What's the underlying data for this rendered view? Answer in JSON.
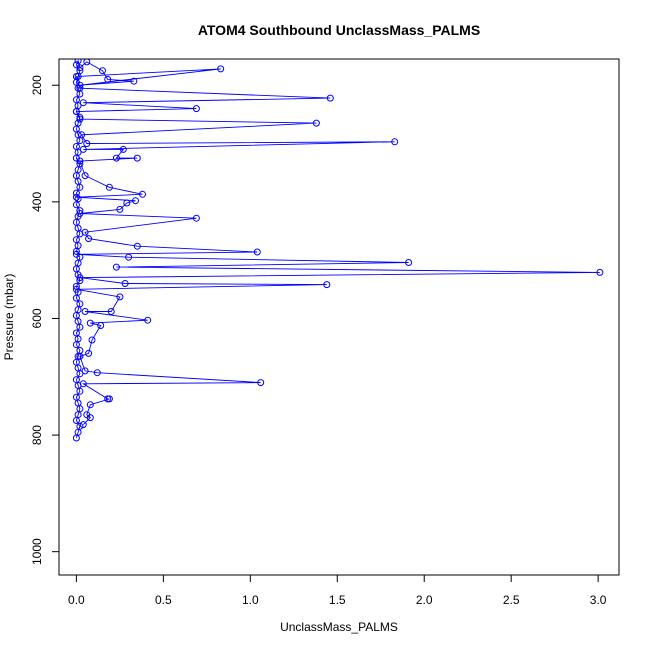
{
  "chart_data": {
    "type": "scatter",
    "title": "ATOM4 Southbound UnclassMass_PALMS",
    "xlabel": "UnclassMass_PALMS",
    "ylabel": "Pressure (mbar)",
    "xlim": [
      -0.1,
      3.12
    ],
    "ylim": [
      1040,
      155
    ],
    "y_reversed": true,
    "x_ticks": [
      "0.0",
      "0.5",
      "1.0",
      "1.5",
      "2.0",
      "2.5",
      "3.0"
    ],
    "y_ticks": [
      "200",
      "400",
      "600",
      "800",
      "1000"
    ],
    "series_color": "#0000ff",
    "series": [
      {
        "points": [
          [
            0.0,
            805
          ],
          [
            0.01,
            795
          ],
          [
            0.02,
            785
          ],
          [
            0.0,
            775
          ],
          [
            0.01,
            765
          ],
          [
            0.02,
            755
          ],
          [
            0.01,
            745
          ],
          [
            0.0,
            735
          ],
          [
            0.02,
            725
          ],
          [
            0.01,
            715
          ],
          [
            0.0,
            705
          ],
          [
            0.02,
            695
          ],
          [
            0.01,
            685
          ],
          [
            0.0,
            675
          ],
          [
            0.01,
            665
          ],
          [
            0.02,
            655
          ],
          [
            0.0,
            645
          ],
          [
            0.01,
            635
          ],
          [
            0.0,
            625
          ],
          [
            0.02,
            615
          ],
          [
            0.01,
            605
          ],
          [
            0.0,
            595
          ],
          [
            0.01,
            585
          ],
          [
            0.02,
            575
          ],
          [
            0.0,
            565
          ],
          [
            0.01,
            555
          ],
          [
            0.0,
            545
          ],
          [
            0.02,
            535
          ],
          [
            0.01,
            525
          ],
          [
            0.0,
            515
          ],
          [
            0.01,
            505
          ],
          [
            0.02,
            495
          ],
          [
            0.0,
            485
          ],
          [
            0.01,
            475
          ],
          [
            0.0,
            465
          ],
          [
            0.02,
            455
          ],
          [
            0.01,
            445
          ],
          [
            0.0,
            435
          ],
          [
            0.01,
            425
          ],
          [
            0.02,
            415
          ],
          [
            0.0,
            405
          ],
          [
            0.01,
            395
          ],
          [
            0.0,
            385
          ],
          [
            0.02,
            375
          ],
          [
            0.01,
            365
          ],
          [
            0.0,
            355
          ],
          [
            0.01,
            345
          ],
          [
            0.02,
            335
          ],
          [
            0.0,
            325
          ],
          [
            0.01,
            315
          ],
          [
            0.0,
            305
          ],
          [
            0.02,
            295
          ],
          [
            0.01,
            285
          ],
          [
            0.0,
            275
          ],
          [
            0.01,
            265
          ],
          [
            0.02,
            255
          ],
          [
            0.0,
            245
          ],
          [
            0.01,
            235
          ],
          [
            0.0,
            225
          ],
          [
            0.02,
            215
          ],
          [
            0.01,
            205
          ],
          [
            0.0,
            195
          ],
          [
            0.01,
            185
          ],
          [
            0.02,
            175
          ],
          [
            0.0,
            165
          ],
          [
            0.01,
            158
          ],
          [
            0.02,
            170
          ],
          [
            0.06,
            160
          ],
          [
            0.15,
            175
          ],
          [
            0.18,
            190
          ],
          [
            0.33,
            193
          ],
          [
            0.02,
            200
          ],
          [
            0.83,
            172
          ],
          [
            0.0,
            185
          ],
          [
            0.02,
            205
          ],
          [
            1.46,
            222
          ],
          [
            0.04,
            230
          ],
          [
            0.69,
            240
          ],
          [
            0.0,
            245
          ],
          [
            0.02,
            258
          ],
          [
            1.38,
            265
          ],
          [
            0.03,
            285
          ],
          [
            0.06,
            300
          ],
          [
            1.83,
            297
          ],
          [
            0.04,
            310
          ],
          [
            0.27,
            310
          ],
          [
            0.23,
            325
          ],
          [
            0.35,
            325
          ],
          [
            0.02,
            330
          ],
          [
            0.05,
            355
          ],
          [
            0.19,
            375
          ],
          [
            0.38,
            387
          ],
          [
            0.0,
            392
          ],
          [
            0.34,
            398
          ],
          [
            0.29,
            402
          ],
          [
            0.25,
            413
          ],
          [
            0.02,
            420
          ],
          [
            0.69,
            428
          ],
          [
            0.05,
            452
          ],
          [
            0.07,
            463
          ],
          [
            0.35,
            476
          ],
          [
            1.04,
            486
          ],
          [
            0.0,
            490
          ],
          [
            0.3,
            495
          ],
          [
            1.91,
            504
          ],
          [
            0.23,
            512
          ],
          [
            3.01,
            521
          ],
          [
            0.02,
            530
          ],
          [
            0.28,
            540
          ],
          [
            1.44,
            542
          ],
          [
            0.0,
            550
          ],
          [
            0.25,
            563
          ],
          [
            0.2,
            588
          ],
          [
            0.05,
            588
          ],
          [
            0.41,
            603
          ],
          [
            0.08,
            608
          ],
          [
            0.14,
            612
          ],
          [
            0.09,
            637
          ],
          [
            0.07,
            660
          ],
          [
            0.02,
            665
          ],
          [
            0.05,
            690
          ],
          [
            0.12,
            693
          ],
          [
            1.06,
            710
          ],
          [
            0.04,
            712
          ],
          [
            0.18,
            738
          ],
          [
            0.19,
            738
          ],
          [
            0.08,
            748
          ],
          [
            0.06,
            765
          ],
          [
            0.08,
            770
          ],
          [
            0.04,
            782
          ]
        ]
      }
    ]
  }
}
